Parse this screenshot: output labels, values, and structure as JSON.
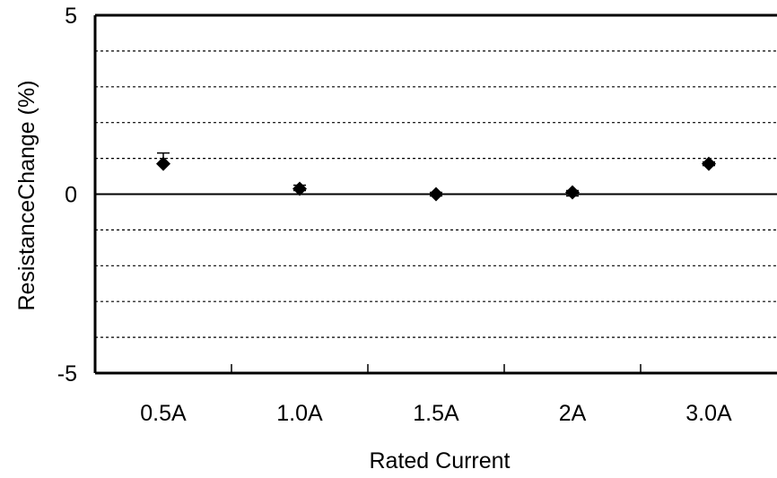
{
  "chart_data": {
    "type": "scatter",
    "title": "",
    "xlabel": "Rated Current",
    "ylabel": "ResistanceChange (%)",
    "categories": [
      "0.5A",
      "1.0A",
      "1.5A",
      "2A",
      "3.0A"
    ],
    "series": [
      {
        "values": [
          0.85,
          0.15,
          0.0,
          0.05,
          0.85
        ],
        "error_upper": [
          0.3,
          0.1,
          0.05,
          0.05,
          0.05
        ],
        "error_lower": [
          0.0,
          0.05,
          0.05,
          0.1,
          0.05
        ],
        "marker": "diamond",
        "color": "#000000"
      }
    ],
    "ylim": [
      -5,
      5
    ],
    "yticks": [
      5,
      0,
      -5
    ],
    "grid": "dashed horizontal every 1",
    "zero_line": true,
    "legend": "none"
  }
}
